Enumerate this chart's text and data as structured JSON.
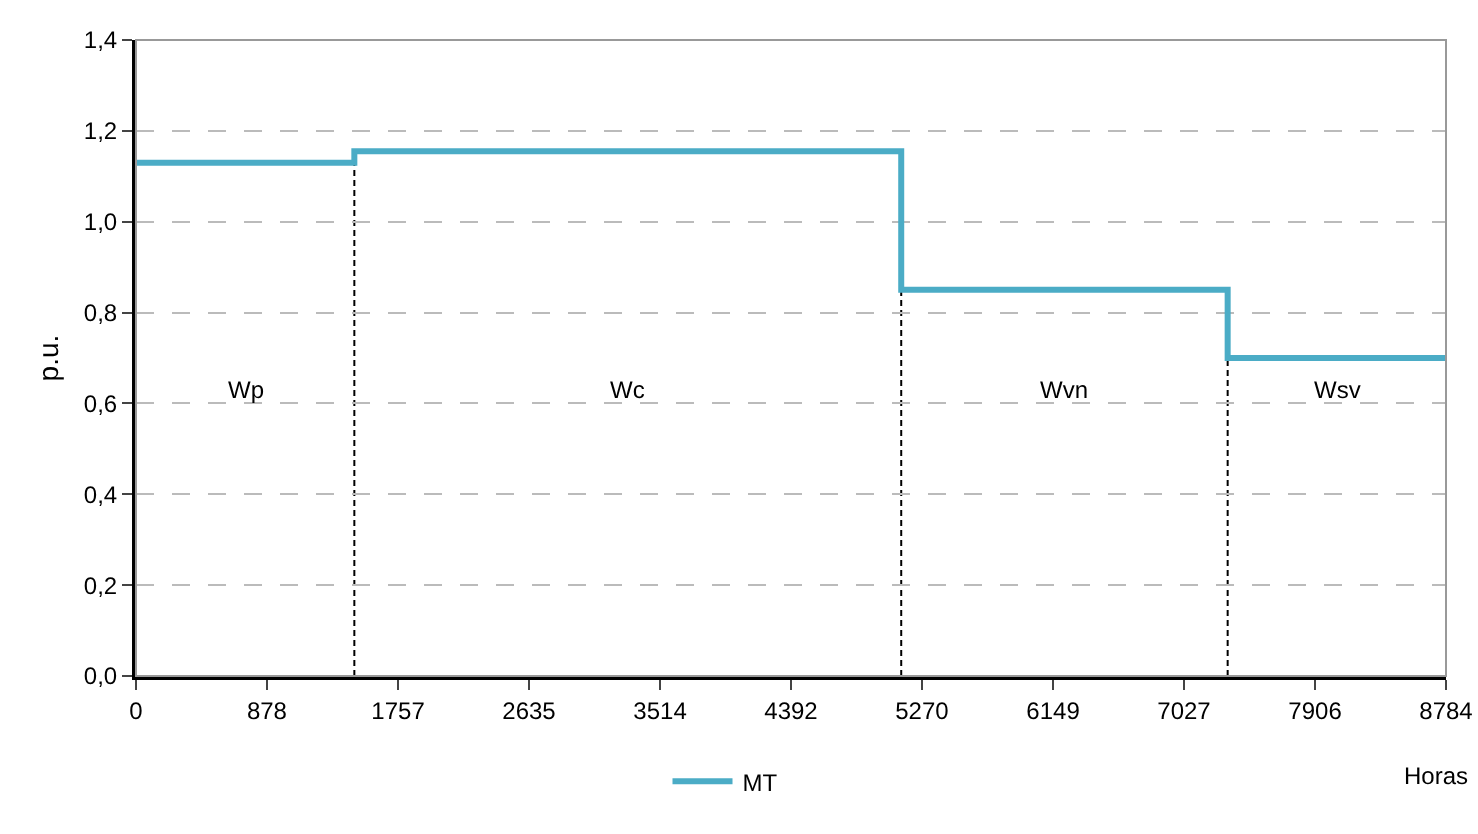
{
  "chart_data": {
    "type": "step",
    "xlabel": "Horas",
    "ylabel": "p.u.",
    "x": [
      0,
      1464,
      5131,
      7320,
      8784
    ],
    "series": [
      {
        "name": "MT",
        "color": "#4bacc6",
        "values": [
          1.13,
          1.155,
          0.85,
          0.7,
          0.7
        ]
      }
    ],
    "xlim": [
      0,
      8784
    ],
    "xticks": [
      0,
      878,
      1757,
      2635,
      3514,
      4392,
      5270,
      6149,
      7027,
      7906,
      8784
    ],
    "ylim": [
      0,
      1.4
    ],
    "yticks": [
      {
        "value": 0,
        "label": "0,0"
      },
      {
        "value": 0.2,
        "label": "0,2"
      },
      {
        "value": 0.4,
        "label": "0,4"
      },
      {
        "value": 0.6,
        "label": "0,6"
      },
      {
        "value": 0.8,
        "label": "0,8"
      },
      {
        "value": 1,
        "label": "1,0"
      },
      {
        "value": 1.2,
        "label": "1,2"
      },
      {
        "value": 1.4,
        "label": "1,4"
      }
    ],
    "ref_lines": [
      {
        "axis": "x",
        "value": 1464,
        "color": "#000000",
        "line_style": "dashed"
      },
      {
        "axis": "x",
        "value": 5131,
        "color": "#000000",
        "line_style": "dashed"
      },
      {
        "axis": "x",
        "value": 7320,
        "color": "#000000",
        "line_style": "dashed"
      }
    ],
    "annotations": [
      "Wp",
      "Wc",
      "Wvn",
      "Wsv"
    ],
    "grid": "y",
    "legend": "bottom",
    "marker": "none",
    "line_style": "solid"
  }
}
